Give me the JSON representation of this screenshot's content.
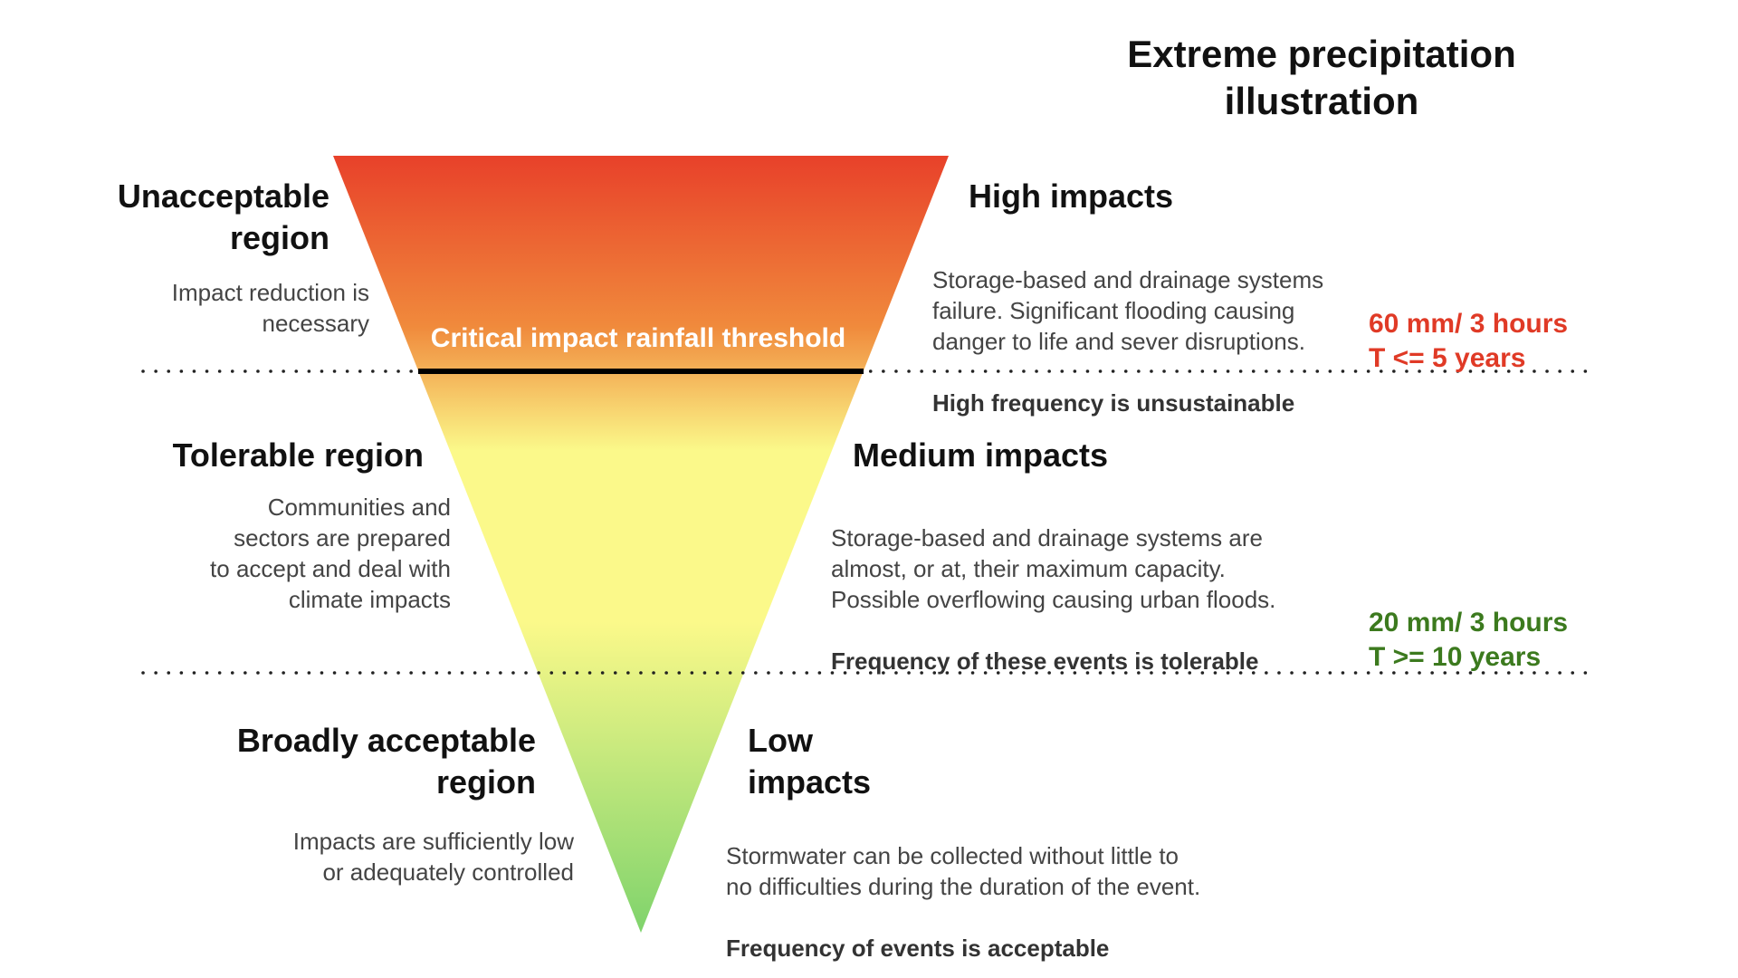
{
  "title": "Extreme precipitation\nillustration",
  "colors": {
    "top": "#e8412a",
    "orange": "#f08a3c",
    "yellow": "#fbf98a",
    "green": "#7fd36c",
    "red_text": "#e03a26",
    "green_text": "#3c7a1e",
    "threshold_line": "#000000",
    "dots": "#222222"
  },
  "threshold_label": "Critical impact rainfall threshold",
  "regions": {
    "unacceptable": {
      "heading": "Unacceptable\nregion",
      "text": "Impact reduction is\nnecessary"
    },
    "tolerable": {
      "heading": "Tolerable region",
      "text": "Communities and\nsectors are prepared\nto accept and deal with\nclimate impacts"
    },
    "acceptable": {
      "heading": "Broadly acceptable\nregion",
      "text": "Impacts are sufficiently low\nor adequately controlled"
    }
  },
  "impacts": {
    "high": {
      "heading": "High impacts",
      "text": "Storage-based and drainage systems\nfailure.  Significant flooding causing\ndanger to life and sever disruptions.",
      "bold": "High frequency is unsustainable"
    },
    "medium": {
      "heading": "Medium impacts",
      "text": "Storage-based and drainage systems are\nalmost, or at, their maximum capacity.\nPossible overflowing causing urban floods.",
      "bold": "Frequency of these events is tolerable"
    },
    "low": {
      "heading": "Low\nimpacts",
      "text": "Stormwater can be collected without little to\nno difficulties during the duration of the event.",
      "bold": "Frequency of events is acceptable"
    }
  },
  "thresholds": {
    "upper": {
      "amount": "60 mm/ 3 hours",
      "period": "T <= 5 years"
    },
    "lower": {
      "amount": "20 mm/ 3 hours",
      "period": "T >= 10 years"
    }
  }
}
